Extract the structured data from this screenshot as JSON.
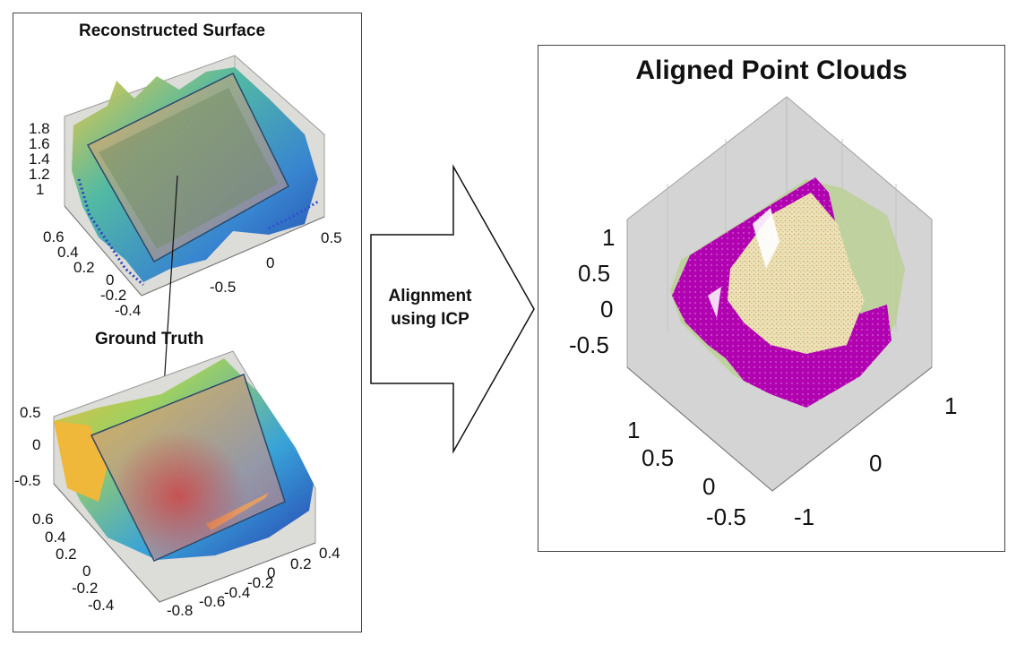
{
  "left_panel": {
    "top_title": "Reconstructed Surface",
    "bottom_title": "Ground Truth",
    "top_z_ticks": [
      "1.8",
      "1.6",
      "1.4",
      "1.2",
      "1"
    ],
    "top_y_ticks": [
      "0.6",
      "0.4",
      "0.2",
      "0",
      "-0.2",
      "-0.4"
    ],
    "top_x_ticks": [
      "0.5",
      "0",
      "-0.5"
    ],
    "bottom_z_ticks": [
      "0.5",
      "0",
      "-0.5"
    ],
    "bottom_y_ticks": [
      "0.6",
      "0.4",
      "0.2",
      "0",
      "-0.2",
      "-0.4"
    ],
    "bottom_x_ticks": [
      "0.4",
      "0.2",
      "0",
      "-0.2",
      "-0.4",
      "-0.6",
      "-0.8"
    ]
  },
  "arrow": {
    "line1": "Alignment",
    "line2": "using ICP"
  },
  "right_panel": {
    "title": "Aligned Point Clouds",
    "z_ticks": [
      "1",
      "0.5",
      "0",
      "-0.5"
    ],
    "y_ticks": [
      "1",
      "0.5",
      "0",
      "-0.5"
    ],
    "x_ticks": [
      "1",
      "0",
      "-1"
    ]
  },
  "colors": {
    "axis_bg": "#d4d4d4",
    "point_cloud_magenta": "#b000b0",
    "point_cloud_beige": "#f0e0b0",
    "overlay_orange": "#f0a070"
  }
}
